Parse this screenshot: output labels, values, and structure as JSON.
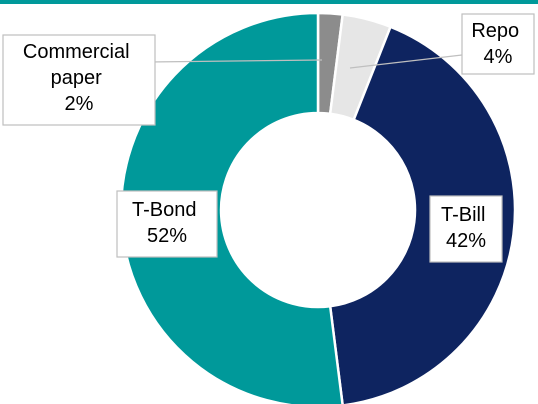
{
  "chart_data": {
    "type": "pie",
    "donut": true,
    "slices": [
      {
        "label": "Commercial paper",
        "value": 2,
        "value_label": "2%",
        "color": "#8c8c8c"
      },
      {
        "label": "Repo",
        "value": 4,
        "value_label": "4%",
        "color": "#e6e6e6"
      },
      {
        "label": "T-Bill",
        "value": 42,
        "value_label": "42%",
        "color": "#0e2460"
      },
      {
        "label": "T-Bond",
        "value": 52,
        "value_label": "52%",
        "color": "#00999a"
      }
    ],
    "accent_color": "#00999a"
  }
}
